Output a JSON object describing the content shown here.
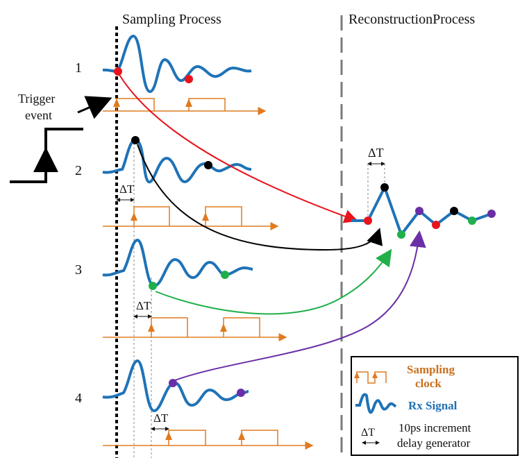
{
  "headings": {
    "sampling": "Sampling Process",
    "reconstruction": "ReconstructionProcess"
  },
  "trigger": {
    "line1": "Trigger",
    "line2": "event"
  },
  "rows": [
    {
      "label": "1",
      "point_color": "#e8141c"
    },
    {
      "label": "2",
      "point_color": "#000000"
    },
    {
      "label": "3",
      "point_color": "#1fb04a"
    },
    {
      "label": "4",
      "point_color": "#6a2fa6"
    }
  ],
  "delta": "ΔT",
  "legend": {
    "sampling_line1": "Sampling",
    "sampling_line2": "clock",
    "rx_signal": "Rx Signal",
    "delay_line1": "10ps increment",
    "delay_line2": "delay generator"
  },
  "colors": {
    "signal": "#1f73b7",
    "clock": "#e07a1f",
    "red": "#e8141c",
    "black": "#000000",
    "green": "#1fb04a",
    "purple": "#6a2fa6",
    "divider": "#7a7a7a"
  }
}
